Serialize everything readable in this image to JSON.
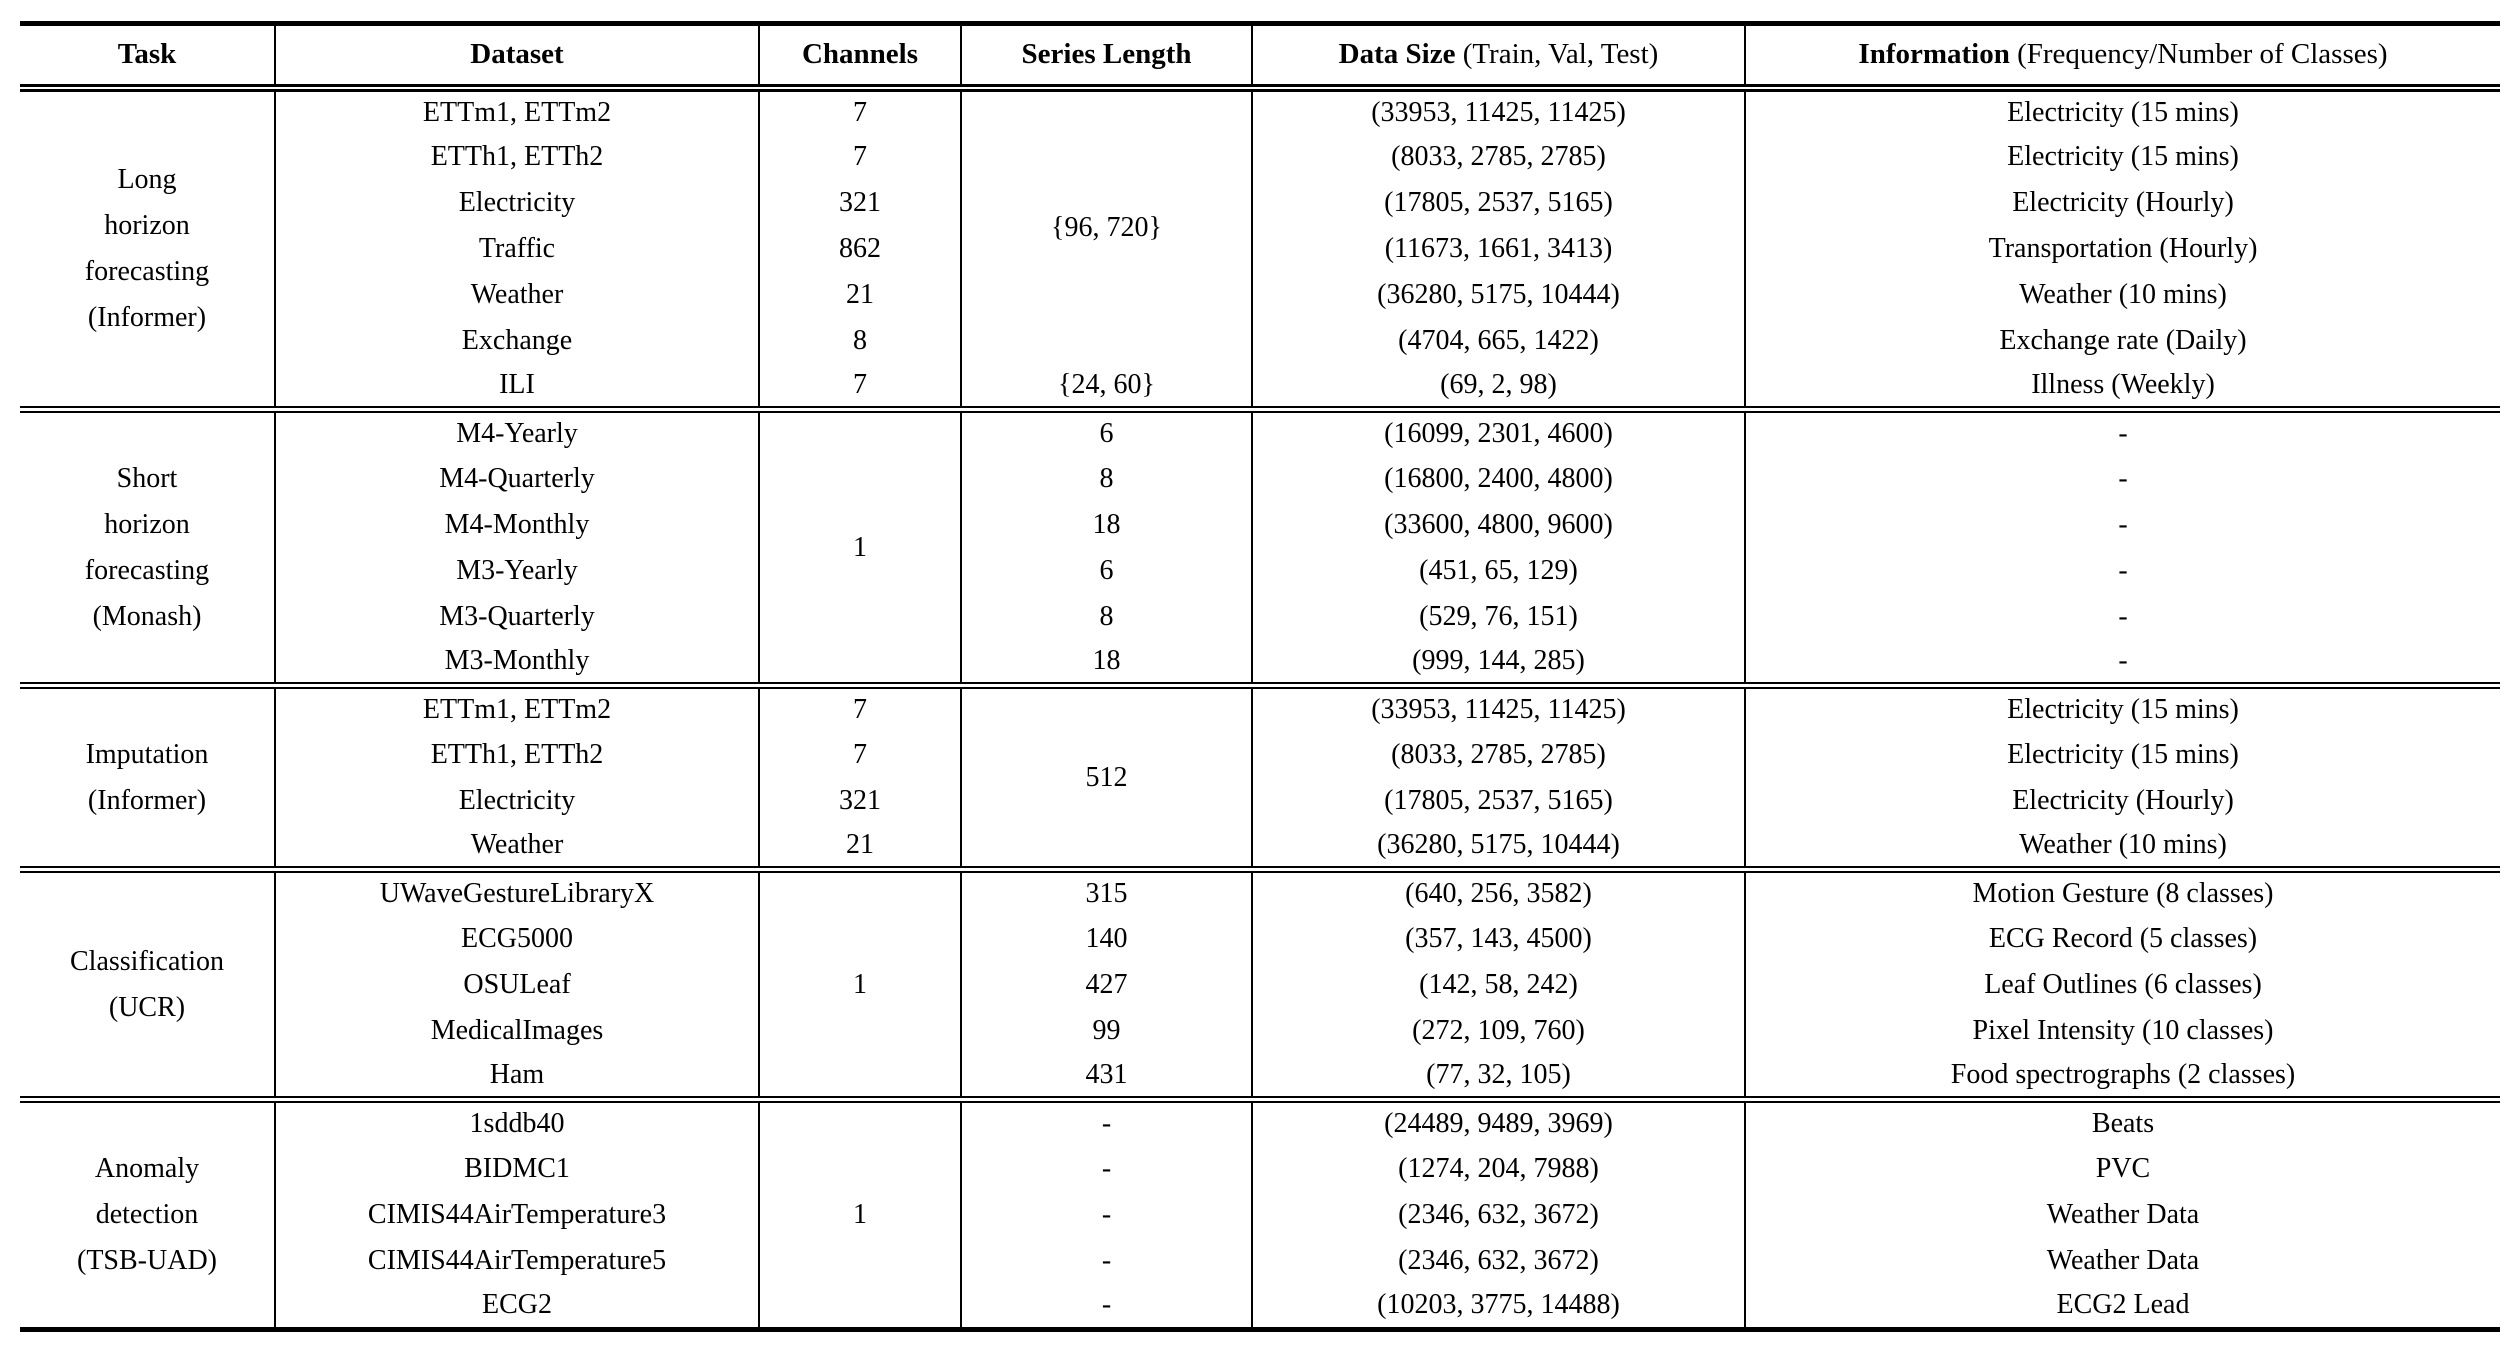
{
  "colors": {
    "background": "#ffffff",
    "text": "#000000",
    "rule": "#000000"
  },
  "table": {
    "headers": [
      {
        "key": "task",
        "bold": "Task",
        "normal": ""
      },
      {
        "key": "dataset",
        "bold": "Dataset",
        "normal": ""
      },
      {
        "key": "channels",
        "bold": "Channels",
        "normal": ""
      },
      {
        "key": "series-length",
        "bold": "Series Length",
        "normal": ""
      },
      {
        "key": "data-size",
        "bold": "Data Size",
        "normal": " (Train, Val, Test)"
      },
      {
        "key": "information",
        "bold": "Information",
        "normal": " (Frequency/Number of Classes)"
      }
    ],
    "groups": [
      {
        "task_lines": [
          "Long",
          "horizon",
          "forecasting",
          "(Informer)"
        ],
        "datasets": [
          "ETTm1, ETTm2",
          "ETTh1, ETTh2",
          "Electricity",
          "Traffic",
          "Weather",
          "Exchange",
          "ILI"
        ],
        "channels": [
          {
            "text": "7",
            "span": 1
          },
          {
            "text": "7",
            "span": 1
          },
          {
            "text": "321",
            "span": 1
          },
          {
            "text": "862",
            "span": 1
          },
          {
            "text": "21",
            "span": 1
          },
          {
            "text": "8",
            "span": 1
          },
          {
            "text": "7",
            "span": 1
          }
        ],
        "series_length": [
          {
            "text": "{96, 720}",
            "span": 6
          },
          {
            "text": "{24, 60}",
            "span": 1
          }
        ],
        "data_size": [
          "(33953, 11425, 11425)",
          "(8033, 2785, 2785)",
          "(17805, 2537, 5165)",
          "(11673, 1661, 3413)",
          "(36280, 5175, 10444)",
          "(4704, 665, 1422)",
          "(69, 2, 98)"
        ],
        "information": [
          "Electricity (15 mins)",
          "Electricity (15 mins)",
          "Electricity (Hourly)",
          "Transportation (Hourly)",
          "Weather (10 mins)",
          "Exchange rate (Daily)",
          "Illness (Weekly)"
        ]
      },
      {
        "task_lines": [
          "Short",
          "horizon",
          "forecasting",
          "(Monash)"
        ],
        "datasets": [
          "M4-Yearly",
          "M4-Quarterly",
          "M4-Monthly",
          "M3-Yearly",
          "M3-Quarterly",
          "M3-Monthly"
        ],
        "channels": [
          {
            "text": "1",
            "span": 6
          }
        ],
        "series_length": [
          {
            "text": "6",
            "span": 1
          },
          {
            "text": "8",
            "span": 1
          },
          {
            "text": "18",
            "span": 1
          },
          {
            "text": "6",
            "span": 1
          },
          {
            "text": "8",
            "span": 1
          },
          {
            "text": "18",
            "span": 1
          }
        ],
        "data_size": [
          "(16099, 2301, 4600)",
          "(16800, 2400, 4800)",
          "(33600, 4800, 9600)",
          "(451, 65, 129)",
          "(529, 76, 151)",
          "(999, 144, 285)"
        ],
        "information": [
          "-",
          "-",
          "-",
          "-",
          "-",
          "-"
        ]
      },
      {
        "task_lines": [
          "Imputation",
          "(Informer)"
        ],
        "datasets": [
          "ETTm1, ETTm2",
          "ETTh1, ETTh2",
          "Electricity",
          "Weather"
        ],
        "channels": [
          {
            "text": "7",
            "span": 1
          },
          {
            "text": "7",
            "span": 1
          },
          {
            "text": "321",
            "span": 1
          },
          {
            "text": "21",
            "span": 1
          }
        ],
        "series_length": [
          {
            "text": "512",
            "span": 4
          }
        ],
        "data_size": [
          "(33953, 11425, 11425)",
          "(8033, 2785, 2785)",
          "(17805, 2537, 5165)",
          "(36280, 5175, 10444)"
        ],
        "information": [
          "Electricity (15 mins)",
          "Electricity (15 mins)",
          "Electricity (Hourly)",
          "Weather (10 mins)"
        ]
      },
      {
        "task_lines": [
          "Classification",
          "(UCR)"
        ],
        "datasets": [
          "UWaveGestureLibraryX",
          "ECG5000",
          "OSULeaf",
          "MedicalImages",
          "Ham"
        ],
        "channels": [
          {
            "text": "1",
            "span": 5
          }
        ],
        "series_length": [
          {
            "text": "315",
            "span": 1
          },
          {
            "text": "140",
            "span": 1
          },
          {
            "text": "427",
            "span": 1
          },
          {
            "text": "99",
            "span": 1
          },
          {
            "text": "431",
            "span": 1
          }
        ],
        "data_size": [
          "(640, 256, 3582)",
          "(357, 143, 4500)",
          "(142, 58, 242)",
          "(272, 109, 760)",
          "(77, 32, 105)"
        ],
        "information": [
          "Motion Gesture (8 classes)",
          "ECG Record (5 classes)",
          "Leaf Outlines (6 classes)",
          "Pixel Intensity (10 classes)",
          "Food spectrographs (2 classes)"
        ]
      },
      {
        "task_lines": [
          "Anomaly",
          "detection",
          "(TSB-UAD)"
        ],
        "datasets": [
          "1sddb40",
          "BIDMC1",
          "CIMIS44AirTemperature3",
          "CIMIS44AirTemperature5",
          "ECG2"
        ],
        "channels": [
          {
            "text": "1",
            "span": 5
          }
        ],
        "series_length": [
          {
            "text": "-",
            "span": 1
          },
          {
            "text": "-",
            "span": 1
          },
          {
            "text": "-",
            "span": 1
          },
          {
            "text": "-",
            "span": 1
          },
          {
            "text": "-",
            "span": 1
          }
        ],
        "data_size": [
          "(24489, 9489, 3969)",
          "(1274, 204, 7988)",
          "(2346, 632, 3672)",
          "(2346, 632, 3672)",
          "(10203, 3775, 14488)"
        ],
        "information": [
          "Beats",
          "PVC",
          "Weather Data",
          "Weather Data",
          "ECG2 Lead"
        ]
      }
    ]
  }
}
